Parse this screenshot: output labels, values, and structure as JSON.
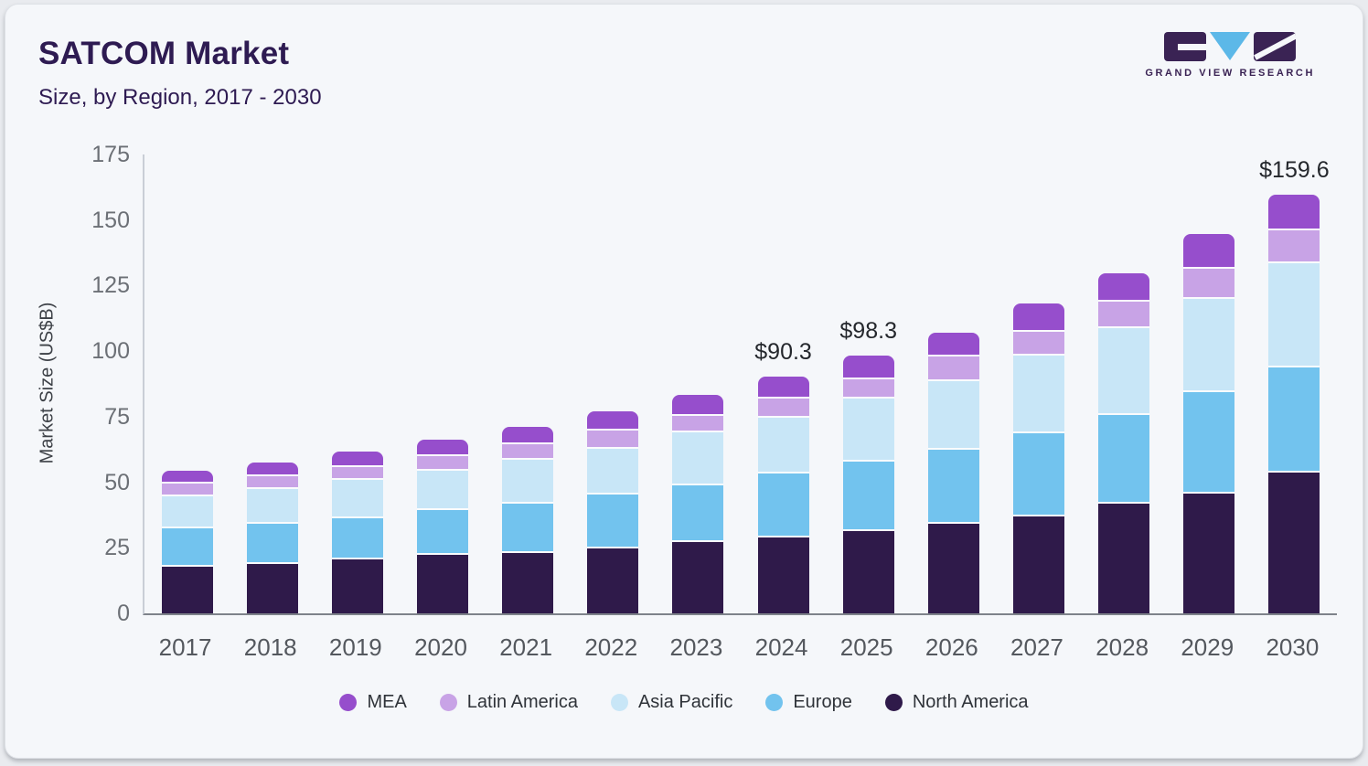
{
  "logo": {
    "text": "GRAND VIEW RESEARCH",
    "block_color": "#3a2354",
    "accent_color": "#5cb8e8"
  },
  "chart_data": {
    "type": "bar",
    "stacked": true,
    "title": "SATCOM Market",
    "subtitle": "Size, by Region, 2017 - 2030",
    "xlabel": "",
    "ylabel": "Market Size (US$B)",
    "ylim": [
      0,
      175
    ],
    "yticks": [
      0,
      25,
      50,
      75,
      100,
      125,
      150,
      175
    ],
    "grid": false,
    "legend_position": "bottom",
    "categories": [
      2017,
      2018,
      2019,
      2020,
      2021,
      2022,
      2023,
      2024,
      2025,
      2026,
      2027,
      2028,
      2029,
      2030
    ],
    "series": [
      {
        "name": "MEA",
        "color": "#964ecc",
        "values": [
          5.0,
          5.5,
          6.0,
          6.3,
          6.8,
          7.1,
          8.2,
          8.5,
          9.1,
          9.4,
          10.9,
          11.0,
          13.3,
          13.4
        ]
      },
      {
        "name": "Latin America",
        "color": "#c8a3e6",
        "values": [
          4.9,
          4.7,
          5.0,
          5.6,
          5.9,
          7.0,
          6.3,
          7.1,
          7.2,
          9.2,
          9.1,
          10.1,
          11.4,
          12.8
        ]
      },
      {
        "name": "Asia Pacific",
        "color": "#c8e6f7",
        "values": [
          12.3,
          13.5,
          14.4,
          15.0,
          16.6,
          17.7,
          20.2,
          21.4,
          24.1,
          26.1,
          29.5,
          32.9,
          35.7,
          39.5
        ]
      },
      {
        "name": "Europe",
        "color": "#72c3ee",
        "values": [
          14.6,
          15.2,
          16.0,
          17.1,
          19.1,
          20.4,
          21.6,
          24.2,
          26.5,
          28.5,
          31.7,
          34.0,
          38.7,
          40.1
        ]
      },
      {
        "name": "North America",
        "color": "#2f1a4a",
        "values": [
          17.7,
          18.8,
          20.4,
          22.2,
          22.9,
          24.8,
          27.1,
          29.1,
          31.4,
          34.0,
          37.1,
          41.8,
          45.6,
          53.8
        ]
      }
    ],
    "stack_order_bottom_to_top": [
      "North America",
      "Europe",
      "Asia Pacific",
      "Latin America",
      "MEA"
    ],
    "annotations": [
      {
        "category": 2024,
        "text": "$90.3"
      },
      {
        "category": 2025,
        "text": "$98.3"
      },
      {
        "category": 2030,
        "text": "$159.6"
      }
    ]
  }
}
